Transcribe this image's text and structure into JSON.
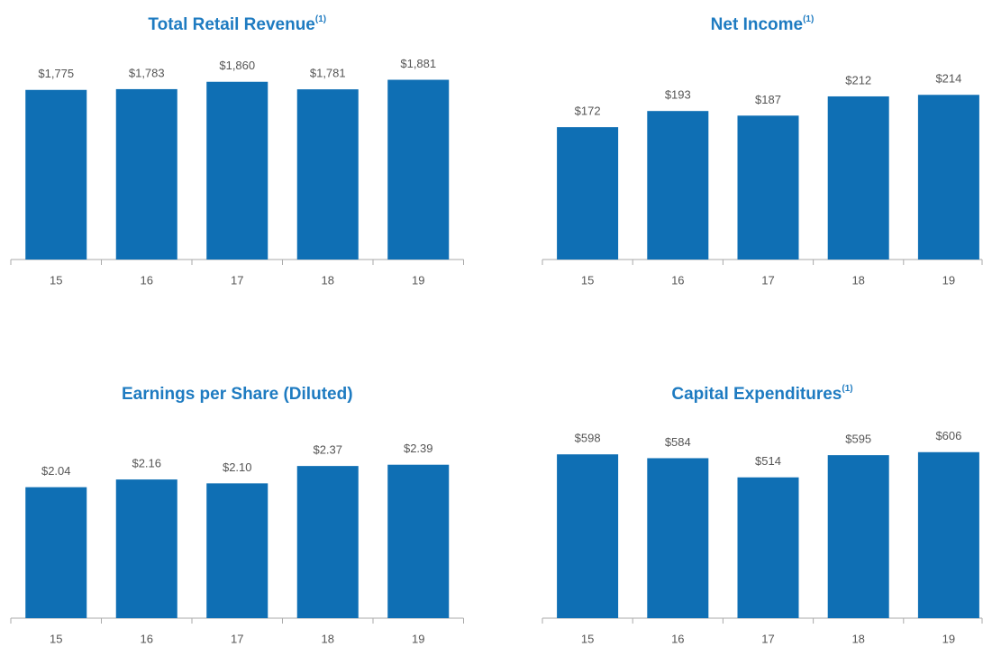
{
  "chart_data": [
    {
      "type": "bar",
      "title": "Total Retail Revenue",
      "title_note": "(1)",
      "categories": [
        "15",
        "16",
        "17",
        "18",
        "19"
      ],
      "values": [
        1775,
        1783,
        1860,
        1781,
        1881
      ],
      "value_labels": [
        "$1,775",
        "$1,783",
        "$1,860",
        "$1,781",
        "$1,881"
      ],
      "color": "#0f6fb4",
      "ylim": [
        0,
        2150
      ]
    },
    {
      "type": "bar",
      "title": "Net Income",
      "title_note": "(1)",
      "categories": [
        "15",
        "16",
        "17",
        "18",
        "19"
      ],
      "values": [
        172,
        193,
        187,
        212,
        214
      ],
      "value_labels": [
        "$172",
        "$193",
        "$187",
        "$212",
        "$214"
      ],
      "color": "#0f6fb4",
      "ylim": [
        0,
        267
      ]
    },
    {
      "type": "bar",
      "title": "Earnings per Share (Diluted)",
      "categories": [
        "15",
        "16",
        "17",
        "18",
        "19"
      ],
      "values": [
        2.04,
        2.16,
        2.1,
        2.37,
        2.39
      ],
      "value_labels": [
        "$2.04",
        "$2.16",
        "$2.10",
        "$2.37",
        "$2.39"
      ],
      "color": "#0f6fb4",
      "ylim": [
        0,
        3.2
      ]
    },
    {
      "type": "bar",
      "title": "Capital Expenditures",
      "title_note": "(1)",
      "categories": [
        "15",
        "16",
        "17",
        "18",
        "19"
      ],
      "values": [
        598,
        584,
        514,
        595,
        606
      ],
      "value_labels": [
        "$598",
        "$584",
        "$514",
        "$595",
        "$606"
      ],
      "color": "#0f6fb4",
      "ylim": [
        0,
        750
      ]
    }
  ]
}
